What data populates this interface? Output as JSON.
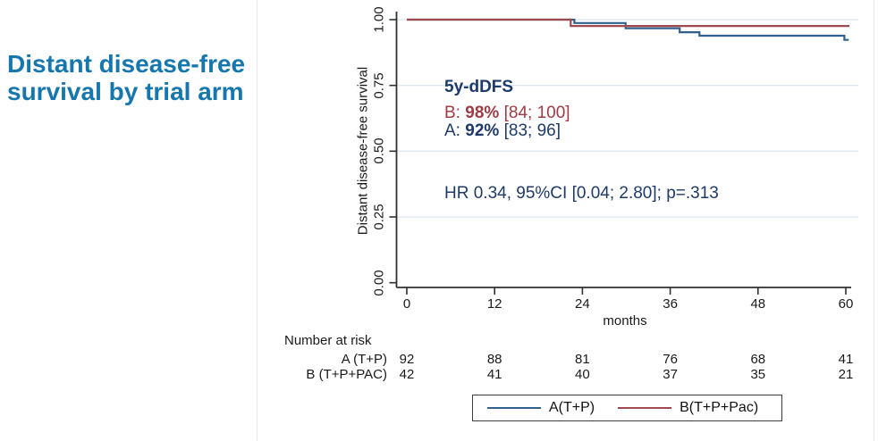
{
  "slide": {
    "title": "Distant disease-free survival by trial arm"
  },
  "colors": {
    "title": "#1577ad",
    "navy": "#1e3a68",
    "red": "#9e3b44",
    "curve_a": "#31618e",
    "curve_b": "#a04a50",
    "axis": "#303030",
    "grid": "#dde8f1",
    "legend_border": "#3c3c3c",
    "edge_line": "#e9e9ee"
  },
  "annotation": {
    "heading": "5y-dDFS",
    "b_label": "B:",
    "b_value": "98%",
    "b_ci": "[84; 100]",
    "a_label": "A:",
    "a_value": "92%",
    "a_ci": "[83; 96]",
    "hr_line": "HR 0.34, 95%CI [0.04; 2.80]; p=.313"
  },
  "risk_table": {
    "heading": "Number at risk",
    "rows": [
      {
        "label": "A (T+P)",
        "values": [
          "92",
          "88",
          "81",
          "76",
          "68",
          "41"
        ]
      },
      {
        "label": "B (T+P+PAC)",
        "values": [
          "42",
          "41",
          "40",
          "37",
          "35",
          "21"
        ]
      }
    ]
  },
  "legend": {
    "items": [
      {
        "label": "A(T+P)",
        "color_key": "curve_a"
      },
      {
        "label": "B(T+P+Pac)",
        "color_key": "curve_b"
      }
    ]
  },
  "chart_data": {
    "type": "line",
    "subtype": "kaplan-meier-step",
    "title": "",
    "xlabel": "months",
    "ylabel": "Distant disease-free survival",
    "xlim": [
      0,
      60
    ],
    "ylim": [
      0,
      1
    ],
    "xticks": [
      0,
      12,
      24,
      36,
      48,
      60
    ],
    "yticks": [
      "0.00",
      "0.25",
      "0.50",
      "0.75",
      "1.00"
    ],
    "grid": true,
    "legend_position": "bottom",
    "series": [
      {
        "name": "A(T+P)",
        "color": "#31618e",
        "steps": [
          [
            0,
            1.0
          ],
          [
            22.9,
            1.0
          ],
          [
            22.9,
            0.987
          ],
          [
            29.9,
            0.987
          ],
          [
            29.9,
            0.967
          ],
          [
            37.3,
            0.967
          ],
          [
            37.3,
            0.952
          ],
          [
            40.0,
            0.952
          ],
          [
            40.0,
            0.939
          ],
          [
            59.8,
            0.939
          ],
          [
            59.8,
            0.923
          ],
          [
            60.4,
            0.923
          ]
        ]
      },
      {
        "name": "B(T+P+Pac)",
        "color": "#a04a50",
        "steps": [
          [
            0,
            1.0
          ],
          [
            22.4,
            1.0
          ],
          [
            22.4,
            0.976
          ],
          [
            60.5,
            0.976
          ]
        ]
      }
    ]
  }
}
